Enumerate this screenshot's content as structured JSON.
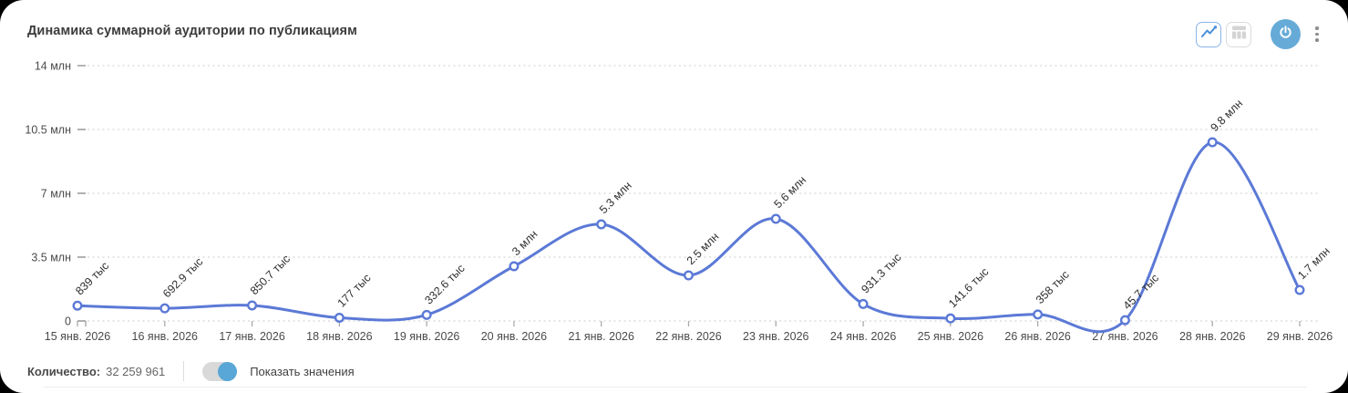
{
  "card": {
    "title": "Динамика суммарной аудитории по публикациям"
  },
  "toolbar": {
    "icons": {
      "line_chart": "line-chart-icon (active view switcher)",
      "table_chart": "table-chart-icon (inactive view switcher)",
      "power": "power-icon (round blue action button)",
      "menu": "kebab-menu-icon"
    },
    "accent_color": "#66abd8",
    "active_border_color": "#8ab4e8"
  },
  "footer": {
    "count_label": "Количество:",
    "count_value": "32 259 961",
    "toggle_label": "Показать значения",
    "toggle_on": true
  },
  "chart_data": {
    "type": "line",
    "title": "Динамика суммарной аудитории по публикациям",
    "categories": [
      "15 янв. 2026",
      "16 янв. 2026",
      "17 янв. 2026",
      "18 янв. 2026",
      "19 янв. 2026",
      "20 янв. 2026",
      "21 янв. 2026",
      "22 янв. 2026",
      "23 янв. 2026",
      "24 янв. 2026",
      "25 янв. 2026",
      "26 янв. 2026",
      "27 янв. 2026",
      "28 янв. 2026",
      "29 янв. 2026"
    ],
    "values_mln": [
      0.839,
      0.6929,
      0.8507,
      0.177,
      0.3326,
      3.0,
      5.3,
      2.5,
      5.6,
      0.9313,
      0.1416,
      0.358,
      0.0457,
      9.8,
      1.7
    ],
    "point_labels": [
      "839 тыс",
      "692.9 тыс",
      "850.7 тыс",
      "177 тыс",
      "332.6 тыс",
      "3 млн",
      "5.3 млн",
      "2.5 млн",
      "5.6 млн",
      "931.3 тыс",
      "141.6 тыс",
      "358 тыс",
      "45.7 тыс",
      "9.8 млн",
      "1.7 млн"
    ],
    "y_ticks": {
      "labels": [
        "0",
        "3.5 млн",
        "7 млн",
        "10.5 млн",
        "14 млн"
      ],
      "values": [
        0,
        3.5,
        7,
        10.5,
        14
      ]
    },
    "ylim": [
      0,
      14
    ],
    "xlabel": "",
    "ylabel": "",
    "grid": "horizontal-dashed",
    "legend": "none",
    "line_color": "#5b79d6",
    "marker": "open-circle",
    "grid_color": "#d6d6d6",
    "tick_color": "#9e9e9e",
    "axis_text_color": "#4a4a4a",
    "point_label_color": "#2f2f2f"
  }
}
